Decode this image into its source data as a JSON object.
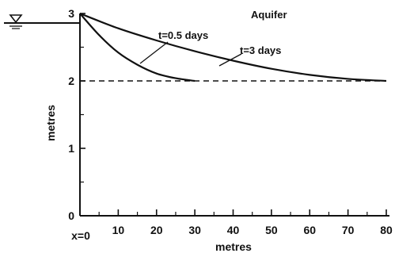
{
  "chart_data": {
    "type": "line",
    "title": "Aquifer",
    "xlabel": "metres",
    "ylabel": "metres",
    "x_origin_label": "x=0",
    "xlim": [
      0,
      80
    ],
    "ylim": [
      0,
      3
    ],
    "x_ticks": [
      10,
      20,
      30,
      40,
      50,
      60,
      70,
      80
    ],
    "y_ticks": [
      0,
      1,
      2,
      3
    ],
    "initial_level": 2,
    "series": [
      {
        "name": "t=0.5 days",
        "x": [
          0,
          5,
          10,
          15,
          20,
          25,
          30
        ],
        "y": [
          3.0,
          2.68,
          2.42,
          2.24,
          2.11,
          2.04,
          2.0
        ]
      },
      {
        "name": "t=3 days",
        "x": [
          0,
          10,
          20,
          30,
          40,
          50,
          60,
          70,
          80
        ],
        "y": [
          3.0,
          2.78,
          2.6,
          2.44,
          2.3,
          2.18,
          2.09,
          2.03,
          2.0
        ]
      }
    ],
    "grid": false,
    "color": "#111111"
  }
}
